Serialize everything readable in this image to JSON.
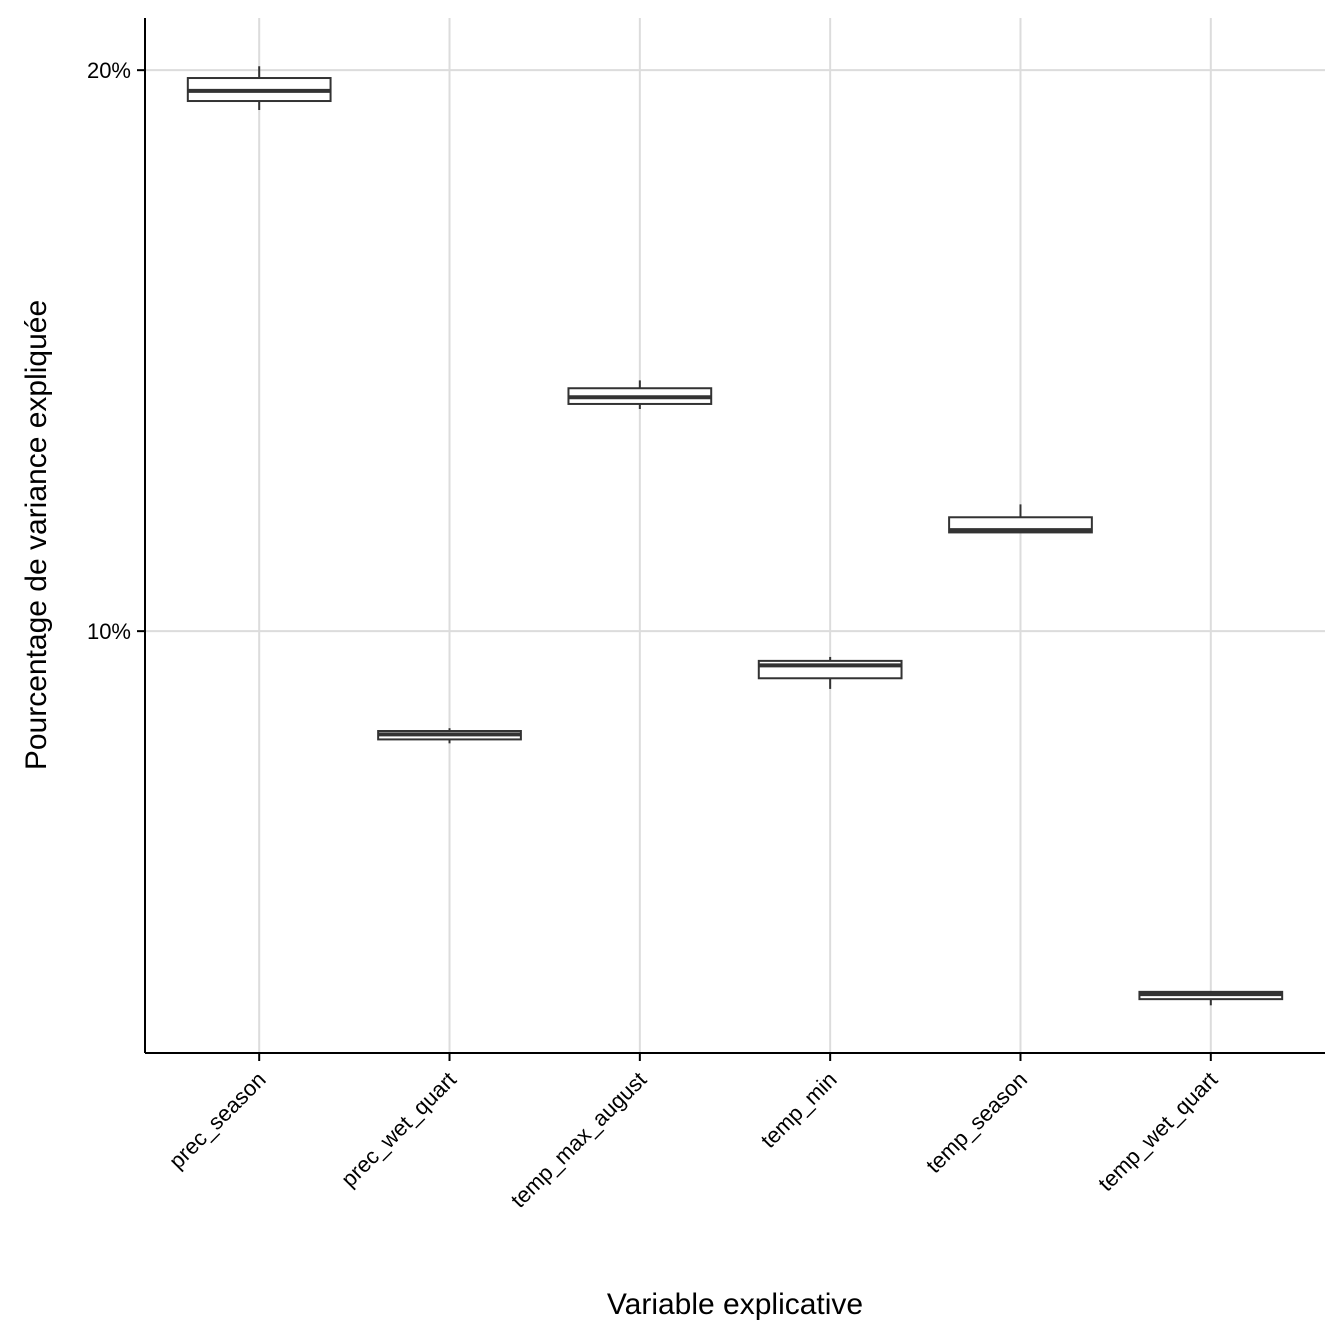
{
  "chart_data": {
    "type": "box",
    "x_label": "Variable explicative",
    "y_label": "Pourcentage de variance expliquée",
    "categories": [
      "prec_season",
      "prec_wet_quart",
      "temp_max_august",
      "temp_min",
      "temp_season",
      "temp_wet_quart"
    ],
    "min": [
      19.29,
      8.0,
      13.96,
      8.97,
      11.75,
      3.33
    ],
    "q1": [
      19.45,
      8.07,
      14.05,
      9.16,
      11.76,
      3.44
    ],
    "median": [
      19.63,
      8.16,
      14.17,
      9.39,
      11.8,
      3.53
    ],
    "q3": [
      19.86,
      8.22,
      14.33,
      9.47,
      12.03,
      3.57
    ],
    "max": [
      20.07,
      8.27,
      14.47,
      9.54,
      12.26,
      3.57
    ],
    "color": "#333333",
    "fill": "#ffffff",
    "ylim": [
      2.48,
      20.93
    ],
    "yticks": [
      {
        "value": 10,
        "label": "10%"
      },
      {
        "value": 20,
        "label": "20%"
      }
    ],
    "grid": true
  }
}
